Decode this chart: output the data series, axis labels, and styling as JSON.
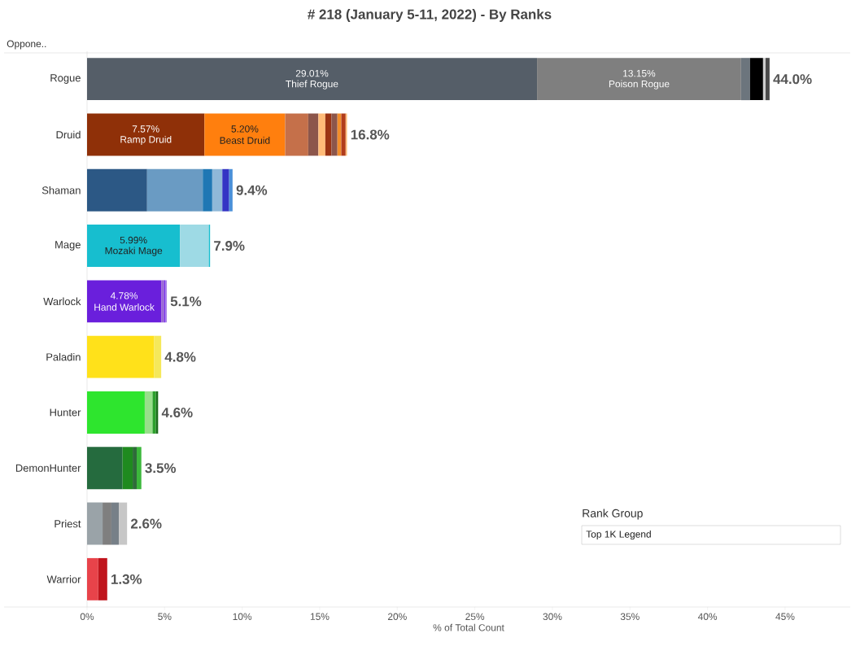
{
  "chart_data": {
    "type": "bar",
    "orientation": "horizontal",
    "stacked": true,
    "title": "# 218 (January 5-11, 2022) - By Ranks",
    "xlabel": "% of Total Count",
    "categories": [
      "Rogue",
      "Druid",
      "Shaman",
      "Mage",
      "Warlock",
      "Paladin",
      "Hunter",
      "DemonHunter",
      "Priest",
      "Warrior"
    ],
    "series": [
      {
        "values": [
          29.01,
          7.57,
          3.87,
          5.99,
          4.78,
          4.33,
          3.72,
          2.29,
          1.0,
          0.72
        ],
        "colors": [
          "#555e68",
          "#8f3008",
          "#2c5885",
          "#17becf",
          "#6a1fdc",
          "#ffe11a",
          "#2ee52e",
          "#256b3e",
          "#9aa3a8",
          "#e8434a"
        ],
        "value_labels": [
          "29.01%",
          "7.57%",
          null,
          "5.99%",
          "4.78%",
          null,
          null,
          null,
          null,
          null
        ]
      },
      {
        "values": [
          13.15,
          5.2,
          3.59,
          1.86,
          0.2,
          0.45,
          0.5,
          0.65,
          0.57,
          0.58
        ],
        "colors": [
          "#7f7f7f",
          "#ff7f0e",
          "#6a9bc3",
          "#9edae5",
          "#9b6ad6",
          "#f5e85a",
          "#98df8a",
          "#1f8a1f",
          "#7f7f7f",
          "#c0141c"
        ],
        "value_labels": [
          "13.15%",
          "5.20%",
          null,
          null,
          null,
          null,
          null,
          null,
          null,
          null
        ]
      },
      {
        "values": [
          0.58,
          1.49,
          0.61,
          0.08,
          0.06,
          null,
          0.22,
          0.26,
          0.48,
          null
        ],
        "colors": [
          "#6c757d",
          "#c5704a",
          "#1f77b4",
          "#17becf",
          "#7b2ff0",
          null,
          "#2ca02c",
          "#2f6b3a",
          "#778088",
          null
        ]
      },
      {
        "values": [
          0.84,
          0.65,
          0.65,
          null,
          0.1,
          null,
          0.14,
          0.3,
          0.53,
          null
        ],
        "colors": [
          "#000000",
          "#8c564b",
          "#8fb8d8",
          null,
          "#a77ee8",
          null,
          "#1a6b1a",
          "#3cb83c",
          "#c7c7c7",
          null
        ]
      },
      {
        "values": [
          0.16,
          0.45,
          0.44,
          null,
          null,
          null,
          null,
          null,
          null,
          null
        ],
        "colors": [
          "#d0d0d0",
          "#ffbb78",
          "#3434c4",
          null,
          null,
          null,
          null,
          null,
          null,
          null
        ]
      },
      {
        "values": [
          0.26,
          0.4,
          0.22,
          null,
          null,
          null,
          null,
          null,
          null,
          null
        ],
        "colors": [
          "#4a4a4a",
          "#9b3413",
          "#4a90d9",
          null,
          null,
          null,
          null,
          null,
          null,
          null
        ]
      },
      {
        "values": [
          null,
          0.38,
          null,
          null,
          null,
          null,
          null,
          null,
          null,
          null
        ],
        "colors": [
          null,
          "#8c564b",
          null,
          null,
          null,
          null,
          null,
          null,
          null,
          null
        ]
      },
      {
        "values": [
          null,
          0.25,
          null,
          null,
          null,
          null,
          null,
          null,
          null,
          null
        ],
        "colors": [
          null,
          "#f28e2b",
          null,
          null,
          null,
          null,
          null,
          null,
          null,
          null
        ]
      },
      {
        "values": [
          null,
          0.28,
          null,
          null,
          null,
          null,
          null,
          null,
          null,
          null
        ],
        "colors": [
          null,
          "#b13c1b",
          null,
          null,
          null,
          null,
          null,
          null,
          null,
          null
        ]
      },
      {
        "values": [
          null,
          0.09,
          null,
          null,
          null,
          null,
          null,
          null,
          null,
          null
        ],
        "colors": [
          null,
          "#ffbb78",
          null,
          null,
          null,
          null,
          null,
          null,
          null,
          null
        ]
      }
    ],
    "totals": [
      "44.0%",
      "16.8%",
      "9.4%",
      "7.9%",
      "5.1%",
      "4.8%",
      "4.6%",
      "3.5%",
      "2.6%",
      "1.3%"
    ],
    "xlim": [
      0,
      49.2
    ],
    "xticks": [
      {
        "value": 0,
        "label": "0%"
      },
      {
        "value": 5,
        "label": "5%"
      },
      {
        "value": 10,
        "label": "10%"
      },
      {
        "value": 15,
        "label": "15%"
      },
      {
        "value": 20,
        "label": "20%"
      },
      {
        "value": 25,
        "label": "25%"
      },
      {
        "value": 30,
        "label": "30%"
      },
      {
        "value": 35,
        "label": "35%"
      },
      {
        "value": 40,
        "label": "40%"
      },
      {
        "value": 45,
        "label": "45%"
      }
    ],
    "annotations": [
      {
        "text": "Thief Rogue",
        "x": 14.5,
        "y": "Rogue"
      },
      {
        "text": "Poison Rogue",
        "x": 35.59,
        "y": "Rogue"
      },
      {
        "text": "Ramp Druid",
        "x": 3.79,
        "y": "Druid"
      },
      {
        "text": "Beast Druid",
        "x": 10.17,
        "y": "Druid"
      },
      {
        "text": "Mozaki Mage",
        "x": 3.0,
        "y": "Mage"
      },
      {
        "text": "Hand Warlock",
        "x": 2.39,
        "y": "Warlock"
      },
      "Oppone..",
      "Rank Group",
      "Top 1K Legend"
    ]
  }
}
